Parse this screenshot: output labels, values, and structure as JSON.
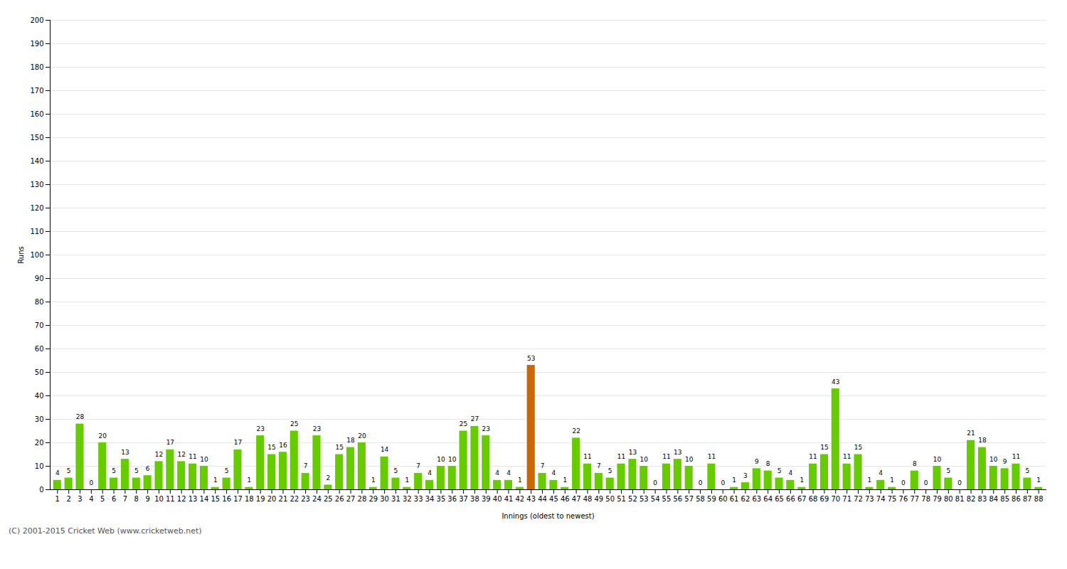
{
  "chart_data": {
    "type": "bar",
    "xlabel": "Innings (oldest to newest)",
    "ylabel": "Runs",
    "categories": [
      "1",
      "2",
      "3",
      "4",
      "5",
      "6",
      "7",
      "8",
      "9",
      "10",
      "11",
      "12",
      "13",
      "14",
      "15",
      "16",
      "17",
      "18",
      "19",
      "20",
      "21",
      "22",
      "23",
      "24",
      "25",
      "26",
      "27",
      "28",
      "29",
      "30",
      "31",
      "32",
      "33",
      "34",
      "35",
      "36",
      "37",
      "38",
      "39",
      "40",
      "41",
      "42",
      "43",
      "44",
      "45",
      "46",
      "47",
      "48",
      "49",
      "50",
      "51",
      "52",
      "53",
      "54",
      "55",
      "56",
      "57",
      "58",
      "59",
      "60",
      "61",
      "62",
      "63",
      "64",
      "65",
      "66",
      "67",
      "68",
      "69",
      "70",
      "71",
      "72",
      "73",
      "74",
      "75",
      "76",
      "77",
      "78",
      "79",
      "80",
      "81",
      "82",
      "83",
      "84",
      "85",
      "86",
      "87",
      "88"
    ],
    "values": [
      4,
      5,
      28,
      0,
      20,
      5,
      13,
      5,
      6,
      12,
      17,
      12,
      11,
      10,
      1,
      5,
      17,
      1,
      23,
      15,
      16,
      25,
      7,
      23,
      2,
      15,
      18,
      20,
      1,
      14,
      5,
      1,
      7,
      4,
      10,
      10,
      25,
      27,
      23,
      4,
      4,
      1,
      53,
      7,
      4,
      1,
      22,
      11,
      7,
      5,
      11,
      13,
      10,
      0,
      11,
      13,
      10,
      0,
      11,
      0,
      1,
      3,
      9,
      8,
      5,
      4,
      1,
      11,
      15,
      43,
      11,
      15,
      1,
      4,
      1,
      0,
      8,
      0,
      10,
      5,
      0,
      21,
      18,
      10,
      9,
      11,
      5,
      1
    ],
    "colors": [
      "#66cc00",
      "#66cc00",
      "#66cc00",
      "#66cc00",
      "#66cc00",
      "#66cc00",
      "#66cc00",
      "#66cc00",
      "#66cc00",
      "#66cc00",
      "#66cc00",
      "#66cc00",
      "#66cc00",
      "#66cc00",
      "#66cc00",
      "#66cc00",
      "#66cc00",
      "#66cc00",
      "#66cc00",
      "#66cc00",
      "#66cc00",
      "#66cc00",
      "#66cc00",
      "#66cc00",
      "#66cc00",
      "#66cc00",
      "#66cc00",
      "#66cc00",
      "#66cc00",
      "#66cc00",
      "#66cc00",
      "#66cc00",
      "#66cc00",
      "#66cc00",
      "#66cc00",
      "#66cc00",
      "#66cc00",
      "#66cc00",
      "#66cc00",
      "#66cc00",
      "#66cc00",
      "#66cc00",
      "#cc6600",
      "#66cc00",
      "#66cc00",
      "#66cc00",
      "#66cc00",
      "#66cc00",
      "#66cc00",
      "#66cc00",
      "#66cc00",
      "#66cc00",
      "#66cc00",
      "#66cc00",
      "#66cc00",
      "#66cc00",
      "#66cc00",
      "#66cc00",
      "#66cc00",
      "#66cc00",
      "#66cc00",
      "#66cc00",
      "#66cc00",
      "#66cc00",
      "#66cc00",
      "#66cc00",
      "#66cc00",
      "#66cc00",
      "#66cc00",
      "#66cc00",
      "#66cc00",
      "#66cc00",
      "#66cc00",
      "#66cc00",
      "#66cc00",
      "#66cc00",
      "#66cc00",
      "#66cc00",
      "#66cc00",
      "#66cc00",
      "#66cc00",
      "#66cc00",
      "#66cc00",
      "#66cc00",
      "#66cc00",
      "#66cc00",
      "#66cc00",
      "#66cc00"
    ],
    "ylim": [
      0,
      200
    ],
    "yticks": [
      0,
      10,
      20,
      30,
      40,
      50,
      60,
      70,
      80,
      90,
      100,
      110,
      120,
      130,
      140,
      150,
      160,
      170,
      180,
      190,
      200
    ],
    "grid": true,
    "data_labels": true,
    "annotations": [
      "(C) 2001-2015 Cricket Web (www.cricketweb.net)"
    ]
  }
}
